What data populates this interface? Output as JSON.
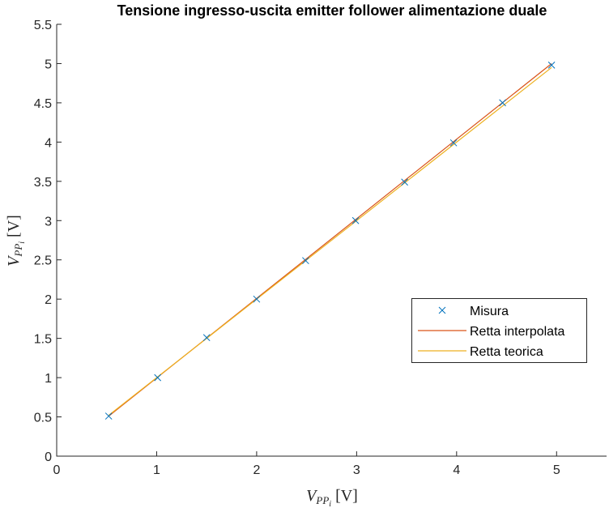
{
  "chart_data": {
    "type": "line",
    "title": "Tensione ingresso-uscita emitter follower alimentazione duale",
    "xlabel": "V_{PP_i} [V]",
    "ylabel": "V_{PP_i} [V]",
    "xlim": [
      0,
      5.5
    ],
    "ylim": [
      0,
      5.5
    ],
    "xticks": [
      0,
      1,
      2,
      3,
      4,
      5
    ],
    "xtick_labels": [
      "0",
      "1",
      "2",
      "3",
      "4",
      "5"
    ],
    "yticks": [
      0,
      0.5,
      1,
      1.5,
      2,
      2.5,
      3,
      3.5,
      4,
      4.5,
      5,
      5.5
    ],
    "ytick_labels": [
      "0",
      "0.5",
      "1",
      "1.5",
      "2",
      "2.5",
      "3",
      "3.5",
      "4",
      "4.5",
      "5",
      "5.5"
    ],
    "grid": false,
    "legend_position": "right",
    "series": [
      {
        "name": "Misura",
        "kind": "scatter",
        "marker": "x",
        "color": "#0072BD",
        "x": [
          0.52,
          1.01,
          1.5,
          2.0,
          2.49,
          2.99,
          3.48,
          3.97,
          4.46,
          4.95
        ],
        "y": [
          0.51,
          1.0,
          1.51,
          2.0,
          2.49,
          3.0,
          3.49,
          3.99,
          4.5,
          4.98
        ]
      },
      {
        "name": "Retta interpolata",
        "kind": "line",
        "color": "#D95319",
        "x": [
          0.52,
          4.95
        ],
        "y": [
          0.51,
          5.0
        ]
      },
      {
        "name": "Retta teorica",
        "kind": "line",
        "color": "#EDB120",
        "x": [
          0.52,
          4.95
        ],
        "y": [
          0.52,
          4.95
        ]
      }
    ]
  }
}
